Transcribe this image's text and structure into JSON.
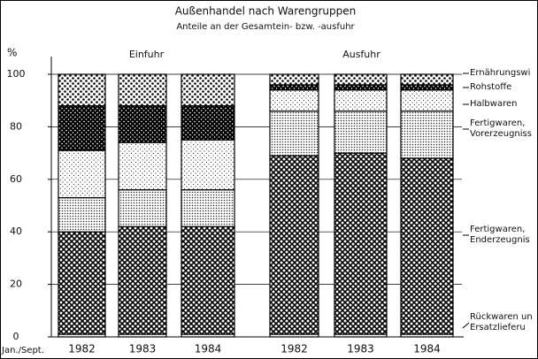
{
  "chart_data": {
    "type": "stacked_bar",
    "title": "Außenhandel nach Warengruppen",
    "subtitle": "Anteile an der Gesamtein- bzw. -ausfuhr",
    "ylabel": "%",
    "x_prefix": "Jan./Sept.",
    "groups": [
      "Einfuhr",
      "Ausfuhr"
    ],
    "categories": [
      "1982",
      "1983",
      "1984",
      "1982",
      "1983",
      "1984"
    ],
    "ylim": [
      0,
      100
    ],
    "yticks": [
      0,
      20,
      40,
      60,
      80,
      100
    ],
    "grid": true,
    "series": [
      {
        "name": "Rückwaren un\nErsatzlieferu",
        "pattern": "white",
        "values": [
          1,
          1,
          1,
          1,
          1,
          1
        ]
      },
      {
        "name": "Fertigwaren,\nEnderzeugnis",
        "pattern": "cross-dense",
        "values": [
          39,
          41,
          41,
          68,
          69,
          67
        ]
      },
      {
        "name": "Fertigwaren,\nVorerzeugniss",
        "pattern": "dots-dense",
        "values": [
          13,
          14,
          14,
          17,
          16,
          18
        ]
      },
      {
        "name": "Halbwaren",
        "pattern": "dots-fine",
        "values": [
          18,
          18,
          19,
          8,
          8,
          8
        ]
      },
      {
        "name": "Rohstoffe",
        "pattern": "cross-dark",
        "values": [
          17,
          14,
          13,
          2,
          2,
          2
        ]
      },
      {
        "name": "Ernährungswi",
        "pattern": "dots-check",
        "values": [
          12,
          12,
          12,
          4,
          4,
          4
        ]
      }
    ]
  }
}
